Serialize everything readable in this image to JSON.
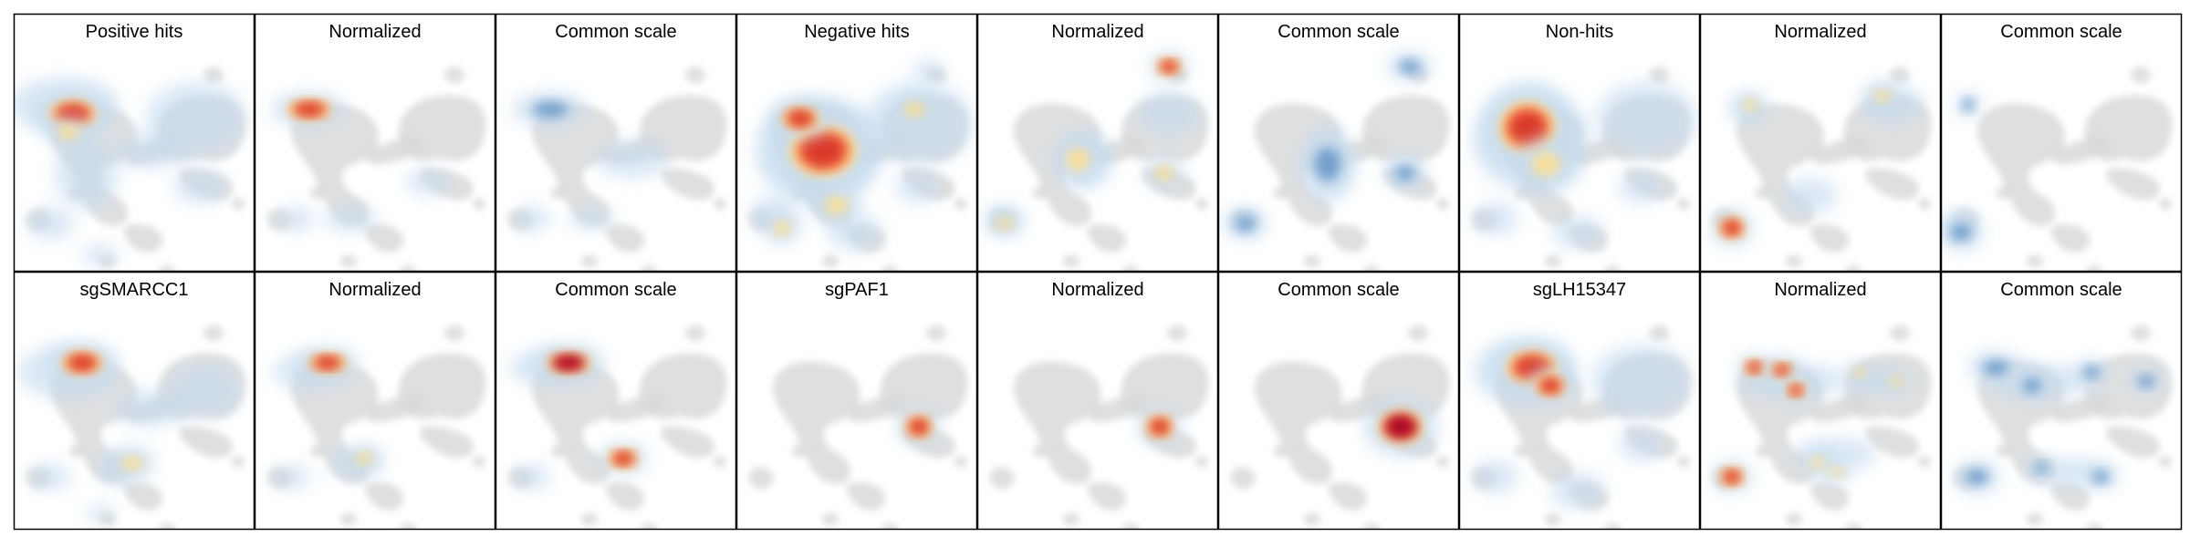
{
  "figure": {
    "rows": [
      {
        "panels": [
          {
            "title": "Positive hits",
            "mode": "raw",
            "pattern": "positive_raw"
          },
          {
            "title": "Normalized",
            "mode": "normalized",
            "pattern": "positive_norm"
          },
          {
            "title": "Common scale",
            "mode": "common",
            "pattern": "positive_common"
          },
          {
            "title": "Negative hits",
            "mode": "raw",
            "pattern": "negative_raw"
          },
          {
            "title": "Normalized",
            "mode": "normalized",
            "pattern": "negative_norm"
          },
          {
            "title": "Common scale",
            "mode": "common",
            "pattern": "negative_common"
          },
          {
            "title": "Non-hits",
            "mode": "raw",
            "pattern": "nonhits_raw"
          },
          {
            "title": "Normalized",
            "mode": "normalized",
            "pattern": "nonhits_norm"
          },
          {
            "title": "Common scale",
            "mode": "common",
            "pattern": "nonhits_common"
          }
        ]
      },
      {
        "panels": [
          {
            "title": "sgSMARCC1",
            "mode": "raw",
            "pattern": "smarcc1_raw"
          },
          {
            "title": "Normalized",
            "mode": "normalized",
            "pattern": "smarcc1_norm"
          },
          {
            "title": "Common scale",
            "mode": "common",
            "pattern": "smarcc1_common"
          },
          {
            "title": "sgPAF1",
            "mode": "raw",
            "pattern": "paf1_raw"
          },
          {
            "title": "Normalized",
            "mode": "normalized",
            "pattern": "paf1_norm"
          },
          {
            "title": "Common scale",
            "mode": "common",
            "pattern": "paf1_common"
          },
          {
            "title": "sgLH15347",
            "mode": "raw",
            "pattern": "lh_raw"
          },
          {
            "title": "Normalized",
            "mode": "normalized",
            "pattern": "lh_norm"
          },
          {
            "title": "Common scale",
            "mode": "common",
            "pattern": "lh_common"
          }
        ]
      }
    ],
    "colors": {
      "background_cells": "#d9d9d9",
      "border": "#000000",
      "blue": "#6b99c7",
      "light_blue": "#c6dbef",
      "yellow": "#fee090",
      "orange": "#f46d43",
      "red": "#d73027",
      "dark_red": "#a50026"
    }
  }
}
